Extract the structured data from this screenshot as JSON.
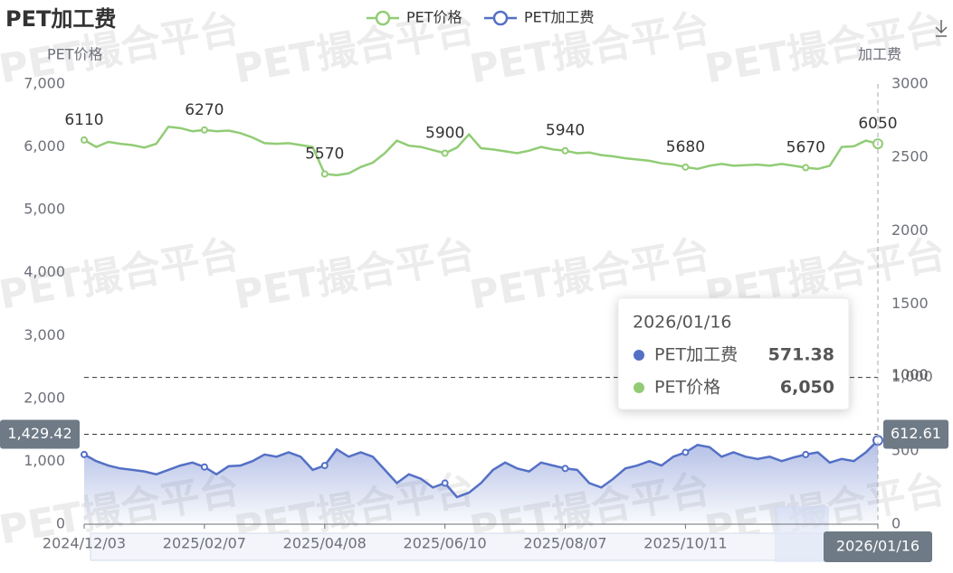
{
  "chart_data": {
    "type": "line",
    "title": "PET加工费",
    "watermark": "PET撮合平台",
    "ylabel": "PET价格",
    "y2label": "加工费",
    "categories": [
      "2024/12/03",
      null,
      null,
      null,
      null,
      null,
      null,
      null,
      null,
      null,
      "2025/02/07",
      null,
      null,
      null,
      null,
      null,
      null,
      null,
      null,
      null,
      "2025/04/08",
      null,
      null,
      null,
      null,
      null,
      null,
      null,
      null,
      null,
      "2025/06/10",
      null,
      null,
      null,
      null,
      null,
      null,
      null,
      null,
      null,
      "2025/08/07",
      null,
      null,
      null,
      null,
      null,
      null,
      null,
      null,
      null,
      "2025/10/11",
      null,
      null,
      null,
      null,
      null,
      null,
      null,
      null,
      null,
      null,
      null,
      null,
      null,
      null,
      null,
      "2026/01/16"
    ],
    "series": [
      {
        "name": "PET价格",
        "color": "#91cc75",
        "axis": "y",
        "values": [
          6110,
          6000,
          6080,
          6050,
          6030,
          5990,
          6050,
          6320,
          6300,
          6250,
          6270,
          6250,
          6260,
          6220,
          6150,
          6060,
          6050,
          6060,
          6030,
          6000,
          5570,
          5550,
          5580,
          5680,
          5750,
          5900,
          6100,
          6020,
          6000,
          5950,
          5900,
          5990,
          6200,
          5980,
          5960,
          5930,
          5900,
          5940,
          6000,
          5960,
          5940,
          5900,
          5910,
          5870,
          5850,
          5820,
          5800,
          5780,
          5740,
          5720,
          5680,
          5650,
          5700,
          5730,
          5700,
          5710,
          5720,
          5700,
          5730,
          5700,
          5670,
          5650,
          5700,
          6000,
          6010,
          6100,
          6050
        ]
      },
      {
        "name": "PET加工费",
        "color": "#5470c6",
        "axis": "y2",
        "values": [
          475,
          430,
          400,
          380,
          370,
          360,
          340,
          370,
          400,
          420,
          390,
          340,
          395,
          400,
          430,
          475,
          460,
          490,
          460,
          370,
          400,
          510,
          460,
          490,
          460,
          370,
          280,
          340,
          310,
          250,
          280,
          185,
          215,
          280,
          370,
          420,
          380,
          360,
          420,
          400,
          380,
          370,
          280,
          250,
          310,
          380,
          400,
          430,
          400,
          460,
          490,
          540,
          525,
          460,
          490,
          460,
          445,
          460,
          430,
          455,
          475,
          490,
          420,
          445,
          430,
          490,
          571.38
        ]
      }
    ],
    "ylim": [
      0,
      7000
    ],
    "yticks": [
      0,
      {
        "value": 1000,
        "label": "1,000"
      },
      {
        "value": 2000,
        "label": "2,000"
      },
      {
        "value": 3000,
        "label": "3,000"
      },
      {
        "value": 4000,
        "label": "4,000"
      },
      {
        "value": 5000,
        "label": "5,000"
      },
      {
        "value": 6000,
        "label": "6,000"
      },
      {
        "value": 7000,
        "label": "7,000"
      }
    ],
    "y2lim": [
      0,
      3000
    ],
    "y2ticks": [
      0,
      500,
      {
        "value": 1000,
        "label": "1,000"
      },
      1500,
      2000,
      2500,
      3000
    ],
    "mark_line": {
      "axis": "y2",
      "value": 1000
    },
    "axis_pointer": {
      "y": {
        "value": 1429.42,
        "label": "1,429.42"
      },
      "y2": 612.61
    },
    "tooltip": {
      "title": "2026/01/16",
      "items": [
        {
          "name": "PET加工费",
          "value": "571.38"
        },
        {
          "name": "PET价格",
          "value": "6,050"
        }
      ]
    }
  }
}
